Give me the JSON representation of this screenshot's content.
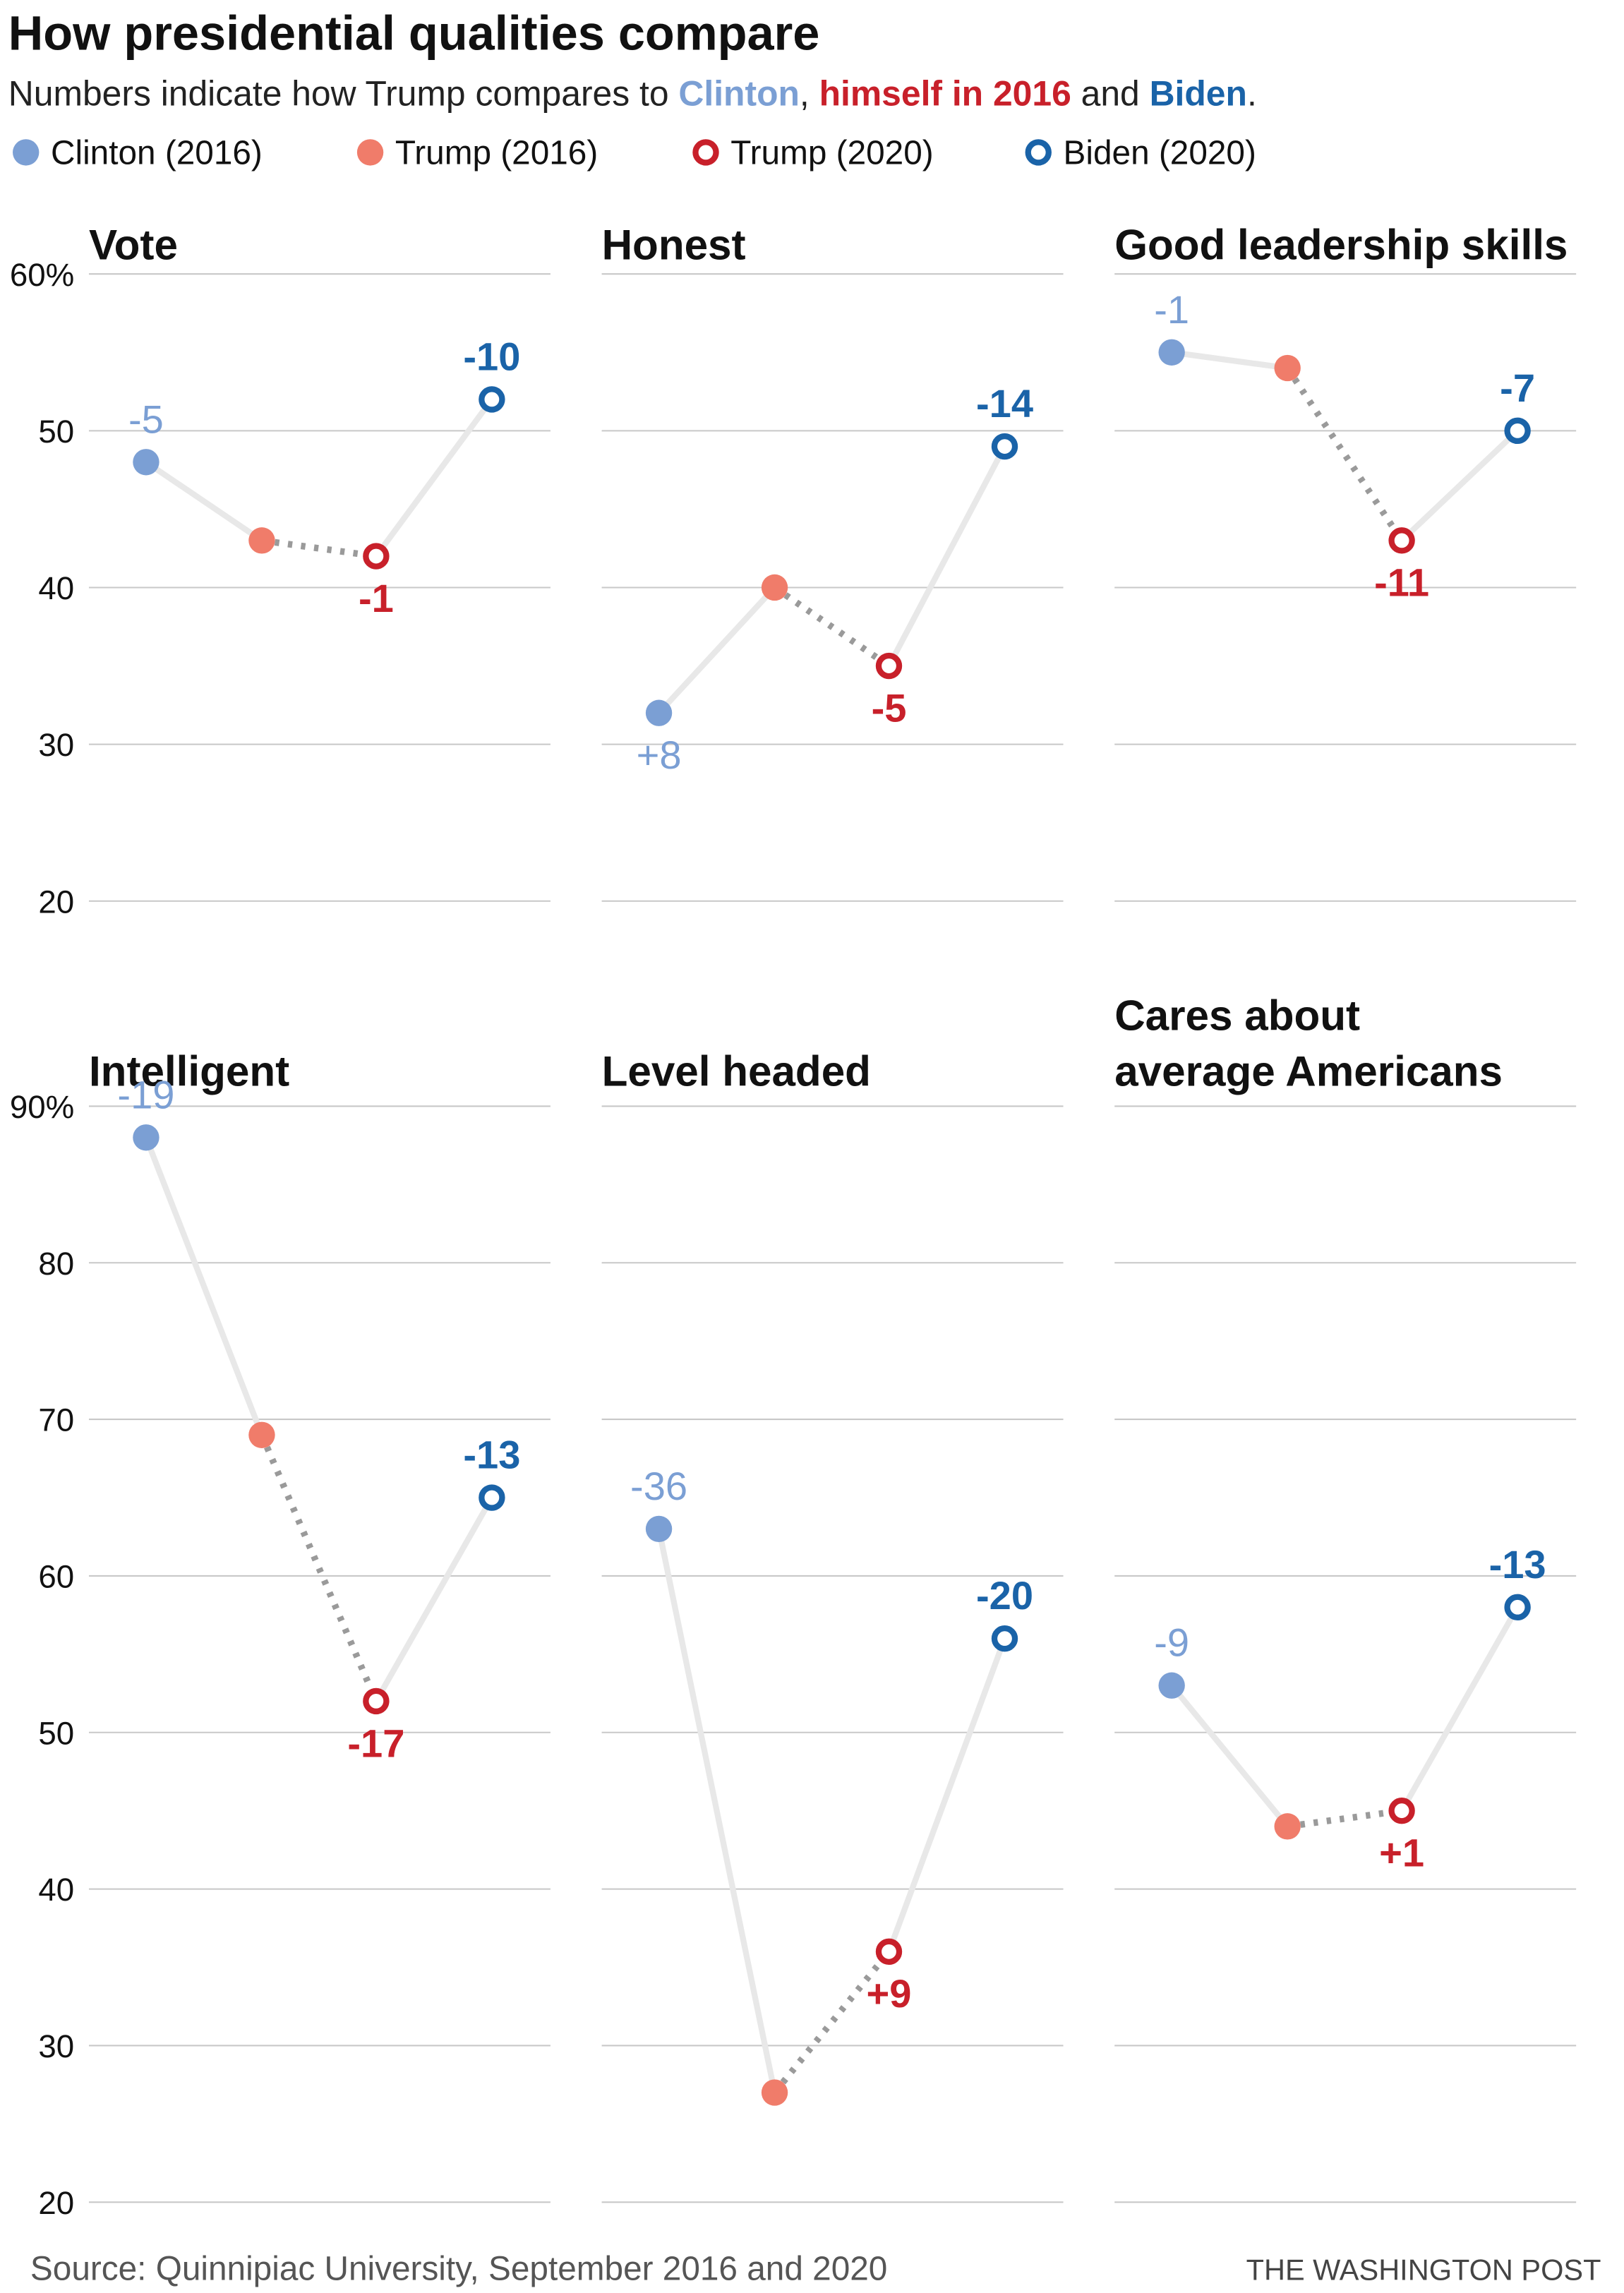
{
  "title": "How presidential qualities compare",
  "subtitle": [
    {
      "text": "Numbers indicate how Trump compares to ",
      "color": "#222222"
    },
    {
      "text": "Clinton",
      "color": "#7b9fd4"
    },
    {
      "text": ", ",
      "color": "#222222"
    },
    {
      "text": "himself in 2016",
      "color": "#c8202a"
    },
    {
      "text": " and ",
      "color": "#222222"
    },
    {
      "text": "Biden",
      "color": "#1a63a8"
    },
    {
      "text": ".",
      "color": "#222222"
    }
  ],
  "series": [
    {
      "name": "Clinton (2016)",
      "color": "#7b9fd4",
      "marker": "filled"
    },
    {
      "name": "Trump (2016)",
      "color": "#f07c6a",
      "marker": "filled"
    },
    {
      "name": "Trump (2020)",
      "color": "#c8202a",
      "marker": "hollow"
    },
    {
      "name": "Biden (2020)",
      "color": "#1a63a8",
      "marker": "hollow"
    }
  ],
  "chart_data": [
    {
      "type": "line",
      "title": "Vote",
      "values": [
        48,
        43,
        42,
        52
      ],
      "comparisons": [
        "-5",
        null,
        "-1",
        "-10"
      ],
      "ylim": [
        20,
        60
      ],
      "yticks": [
        20,
        30,
        40,
        50,
        {
          "value": 60,
          "label": "60%"
        }
      ],
      "show_ytick_labels": true,
      "grid": true
    },
    {
      "type": "line",
      "title": "Honest",
      "values": [
        32,
        40,
        35,
        49
      ],
      "comparisons": [
        "+8",
        null,
        "-5",
        "-14"
      ],
      "ylim": [
        20,
        60
      ],
      "yticks": [
        20,
        30,
        40,
        50,
        60
      ],
      "show_ytick_labels": false,
      "grid": true
    },
    {
      "type": "line",
      "title": "Good leadership skills",
      "values": [
        55,
        54,
        43,
        50
      ],
      "comparisons": [
        "-1",
        null,
        "-11",
        "-7"
      ],
      "ylim": [
        20,
        60
      ],
      "yticks": [
        20,
        30,
        40,
        50,
        60
      ],
      "show_ytick_labels": false,
      "grid": true
    },
    {
      "type": "line",
      "title": "Intelligent",
      "values": [
        88,
        69,
        52,
        65
      ],
      "comparisons": [
        "-19",
        null,
        "-17",
        "-13"
      ],
      "ylim": [
        20,
        90
      ],
      "yticks": [
        20,
        30,
        40,
        50,
        60,
        70,
        80,
        {
          "value": 90,
          "label": "90%"
        }
      ],
      "show_ytick_labels": true,
      "grid": true
    },
    {
      "type": "line",
      "title": "Level headed",
      "values": [
        63,
        27,
        36,
        56
      ],
      "comparisons": [
        "-36",
        null,
        "+9",
        "-20"
      ],
      "ylim": [
        20,
        90
      ],
      "yticks": [
        20,
        30,
        40,
        50,
        60,
        70,
        80,
        90
      ],
      "show_ytick_labels": false,
      "grid": true
    },
    {
      "type": "line",
      "title": [
        "Cares about",
        "average Americans"
      ],
      "values": [
        53,
        44,
        45,
        58
      ],
      "comparisons": [
        "-9",
        null,
        "+1",
        "-13"
      ],
      "ylim": [
        20,
        90
      ],
      "yticks": [
        20,
        30,
        40,
        50,
        60,
        70,
        80,
        90
      ],
      "show_ytick_labels": false,
      "grid": true
    }
  ],
  "source": "Source: Quinnipiac University, September 2016 and 2020",
  "credit": "THE WASHINGTON POST"
}
